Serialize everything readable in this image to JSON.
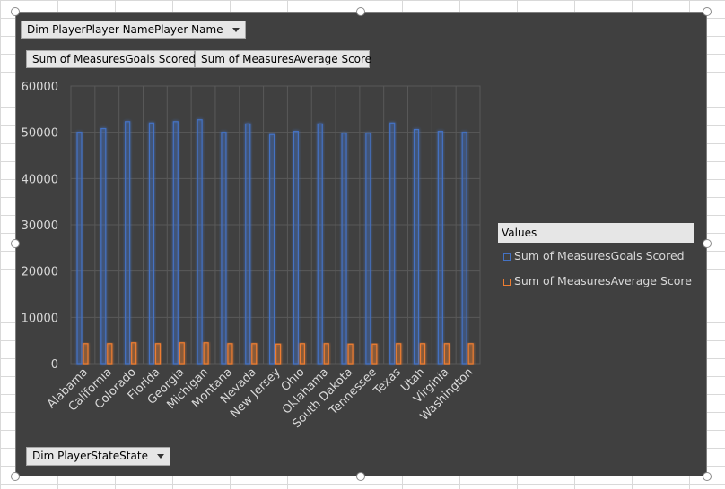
{
  "pivot": {
    "filter_button": "Dim PlayerPlayer NamePlayer  Name",
    "value_buttons": [
      "Sum of MeasuresGoals Scored",
      "Sum of MeasuresAverage Score"
    ],
    "axis_button": "Dim PlayerStateState"
  },
  "legend": {
    "title": "Values",
    "items": [
      {
        "label": "Sum of MeasuresGoals Scored",
        "color": "#4472c4"
      },
      {
        "label": "Sum of MeasuresAverage Score",
        "color": "#ed7d31"
      }
    ]
  },
  "chart_data": {
    "type": "bar",
    "categories": [
      "Alabama",
      "California",
      "Colorado",
      "Florida",
      "Georgia",
      "Michigan",
      "Montana",
      "Nevada",
      "New Jersey",
      "Ohio",
      "Oklahama",
      "South Dakota",
      "Tennessee",
      "Texas",
      "Utah",
      "Virginia",
      "Washington"
    ],
    "series": [
      {
        "name": "Sum of MeasuresGoals Scored",
        "color": "#4472c4",
        "values": [
          50000,
          50800,
          52300,
          52000,
          52300,
          52700,
          50000,
          51800,
          49500,
          50200,
          51800,
          49800,
          49800,
          52000,
          50600,
          50200,
          50000
        ]
      },
      {
        "name": "Sum of MeasuresAverage Score",
        "color": "#ed7d31",
        "values": [
          4300,
          4300,
          4500,
          4300,
          4500,
          4500,
          4300,
          4300,
          4200,
          4300,
          4300,
          4200,
          4200,
          4300,
          4300,
          4300,
          4300
        ]
      }
    ],
    "ylim": [
      0,
      60000
    ],
    "yticks": [
      0,
      10000,
      20000,
      30000,
      40000,
      50000,
      60000
    ],
    "grid": true,
    "legend_position": "right"
  }
}
